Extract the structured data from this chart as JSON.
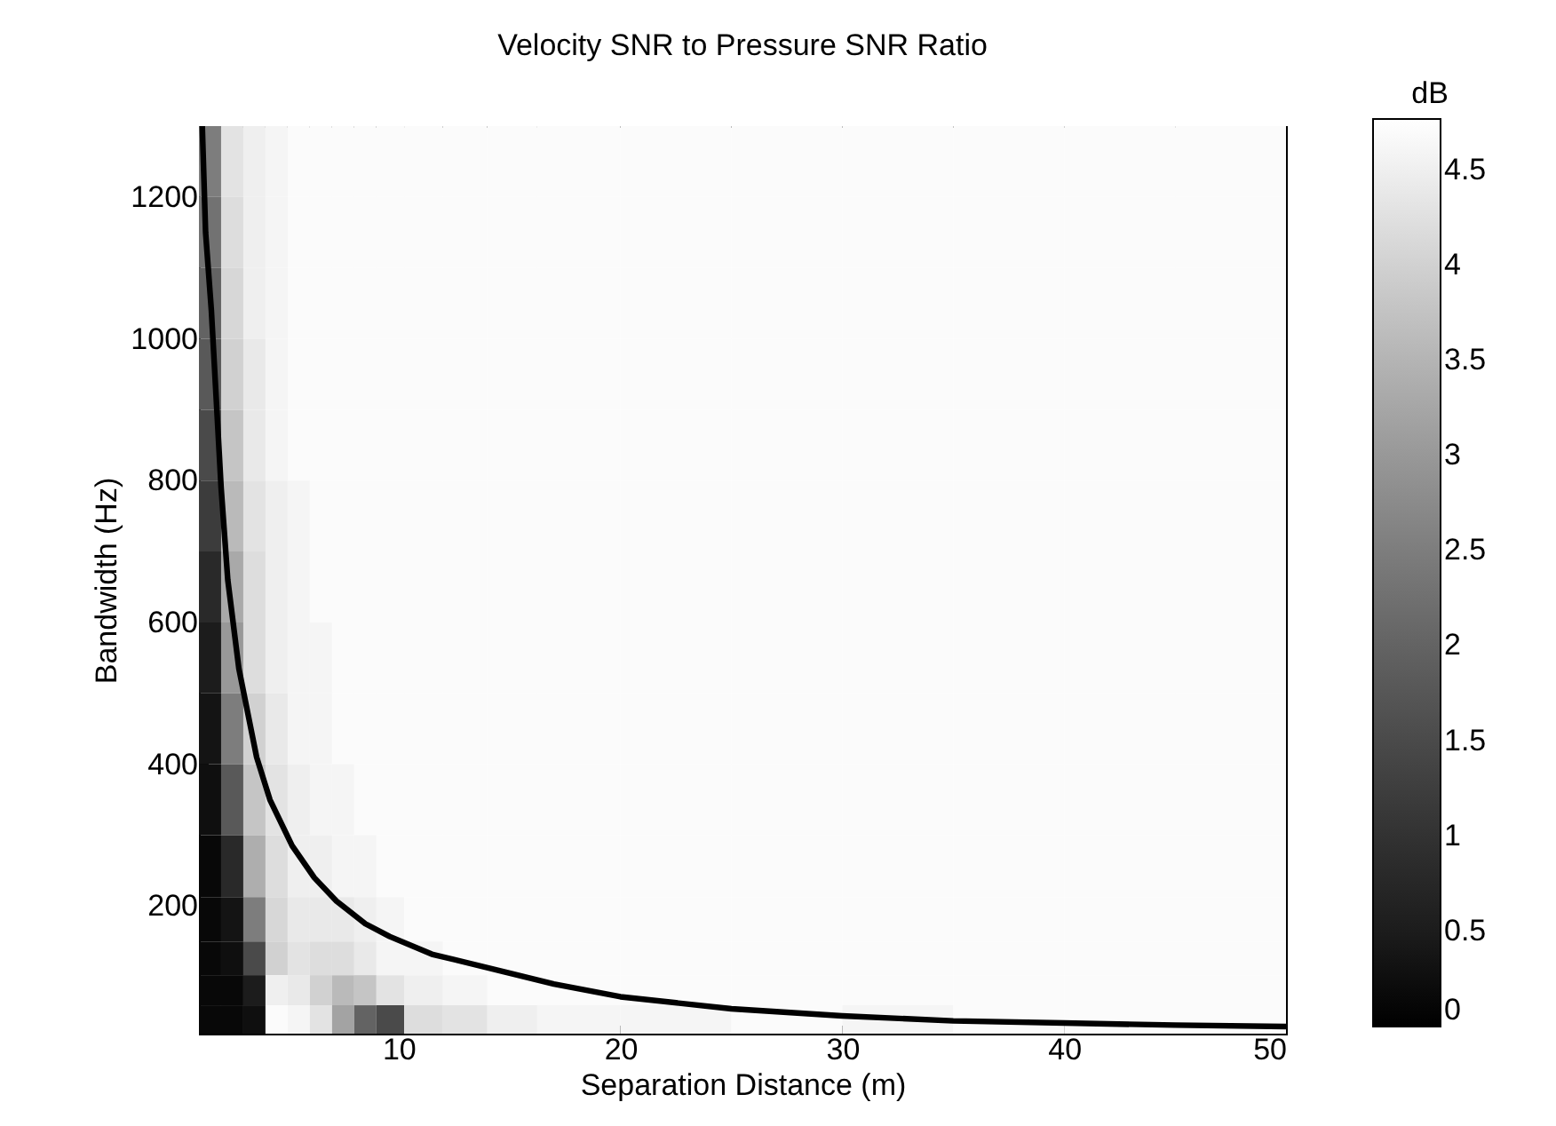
{
  "chart_data": {
    "type": "heatmap",
    "title": "Velocity SNR to Pressure SNR Ratio",
    "xlabel": "Separation Distance (m)",
    "ylabel": "Bandwidth (Hz)",
    "clabel": "dB",
    "x": [
      1.5,
      2.5,
      3.5,
      4.5,
      5.5,
      6.5,
      7.5,
      8.5,
      9.5,
      11,
      13,
      15,
      17.5,
      22.5,
      27.5,
      32.5,
      37.5,
      42.5,
      47.5
    ],
    "y": [
      1250,
      1150,
      1050,
      950,
      850,
      750,
      650,
      550,
      450,
      350,
      250,
      175,
      125,
      80,
      40
    ],
    "cells": [
      [
        2.5,
        4.3,
        4.5,
        4.6,
        4.7,
        4.7,
        4.7,
        4.7,
        4.7,
        4.7,
        4.7,
        4.7,
        4.7,
        4.7,
        4.7,
        4.7,
        4.7,
        4.7,
        4.7
      ],
      [
        2.3,
        4.2,
        4.5,
        4.6,
        4.7,
        4.7,
        4.7,
        4.7,
        4.7,
        4.7,
        4.7,
        4.7,
        4.7,
        4.7,
        4.7,
        4.7,
        4.7,
        4.7,
        4.7
      ],
      [
        2.0,
        4.1,
        4.5,
        4.6,
        4.7,
        4.7,
        4.7,
        4.7,
        4.7,
        4.7,
        4.7,
        4.7,
        4.7,
        4.7,
        4.7,
        4.7,
        4.7,
        4.7,
        4.7
      ],
      [
        1.8,
        4.0,
        4.4,
        4.6,
        4.7,
        4.7,
        4.7,
        4.7,
        4.7,
        4.7,
        4.7,
        4.7,
        4.7,
        4.7,
        4.7,
        4.7,
        4.7,
        4.7,
        4.7
      ],
      [
        1.5,
        3.8,
        4.4,
        4.6,
        4.7,
        4.7,
        4.7,
        4.7,
        4.7,
        4.7,
        4.7,
        4.7,
        4.7,
        4.7,
        4.7,
        4.7,
        4.7,
        4.7,
        4.7
      ],
      [
        1.2,
        3.6,
        4.3,
        4.5,
        4.6,
        4.7,
        4.7,
        4.7,
        4.7,
        4.7,
        4.7,
        4.7,
        4.7,
        4.7,
        4.7,
        4.7,
        4.7,
        4.7,
        4.7
      ],
      [
        0.8,
        3.3,
        4.2,
        4.5,
        4.6,
        4.7,
        4.7,
        4.7,
        4.7,
        4.7,
        4.7,
        4.7,
        4.7,
        4.7,
        4.7,
        4.7,
        4.7,
        4.7,
        4.7
      ],
      [
        0.5,
        3.0,
        4.2,
        4.5,
        4.6,
        4.6,
        4.7,
        4.7,
        4.7,
        4.7,
        4.7,
        4.7,
        4.7,
        4.7,
        4.7,
        4.7,
        4.7,
        4.7,
        4.7
      ],
      [
        0.3,
        2.5,
        4.0,
        4.4,
        4.6,
        4.6,
        4.7,
        4.7,
        4.7,
        4.7,
        4.7,
        4.7,
        4.7,
        4.7,
        4.7,
        4.7,
        4.7,
        4.7,
        4.7
      ],
      [
        0.2,
        1.8,
        3.8,
        4.3,
        4.5,
        4.6,
        4.6,
        4.7,
        4.7,
        4.7,
        4.7,
        4.7,
        4.7,
        4.7,
        4.7,
        4.7,
        4.7,
        4.7,
        4.7
      ],
      [
        0.1,
        0.8,
        3.4,
        4.2,
        4.5,
        4.5,
        4.6,
        4.6,
        4.7,
        4.7,
        4.7,
        4.7,
        4.7,
        4.7,
        4.7,
        4.7,
        4.7,
        4.7,
        4.7
      ],
      [
        0.1,
        0.3,
        2.5,
        4.1,
        4.4,
        4.4,
        4.4,
        4.5,
        4.6,
        4.7,
        4.7,
        4.7,
        4.7,
        4.7,
        4.7,
        4.7,
        4.7,
        4.7,
        4.7
      ],
      [
        0.1,
        0.2,
        1.5,
        4.0,
        4.3,
        4.2,
        4.2,
        4.4,
        4.6,
        4.6,
        4.7,
        4.7,
        4.7,
        4.7,
        4.7,
        4.7,
        4.7,
        4.7,
        4.7
      ],
      [
        0.1,
        0.1,
        0.5,
        4.5,
        4.4,
        4.0,
        3.6,
        3.8,
        4.3,
        4.5,
        4.6,
        4.7,
        4.7,
        4.7,
        4.7,
        4.7,
        4.7,
        4.7,
        4.7
      ],
      [
        0.1,
        0.1,
        0.2,
        4.7,
        4.6,
        4.3,
        3.2,
        2.0,
        1.5,
        4.2,
        4.3,
        4.5,
        4.6,
        4.6,
        4.7,
        4.6,
        4.7,
        4.7,
        4.7
      ]
    ],
    "clim": [
      0,
      4.77
    ],
    "cticks": [
      0,
      0.5,
      1,
      1.5,
      2,
      2.5,
      3,
      3.5,
      4,
      4.5
    ],
    "xlim": [
      1,
      50
    ],
    "ylim": [
      20,
      1300
    ],
    "xticks": [
      10,
      20,
      30,
      40,
      50
    ],
    "yticks": [
      200,
      400,
      600,
      800,
      1000,
      1200
    ],
    "series": [
      {
        "type": "line",
        "color": "#000000",
        "x": [
          1.15,
          1.3,
          1.56,
          2.0,
          2.3,
          2.8,
          3.6,
          4.2,
          5.2,
          6.2,
          7.2,
          8.5,
          9.6,
          11.5,
          14.8,
          17,
          20,
          25,
          30,
          35,
          40,
          45,
          50
        ],
        "values": [
          1300,
          1150,
          1040,
          790,
          660,
          535,
          410,
          350,
          285,
          240,
          207,
          175,
          157,
          132,
          107,
          90,
          72,
          55,
          45,
          38,
          35,
          32,
          30
        ]
      }
    ]
  }
}
